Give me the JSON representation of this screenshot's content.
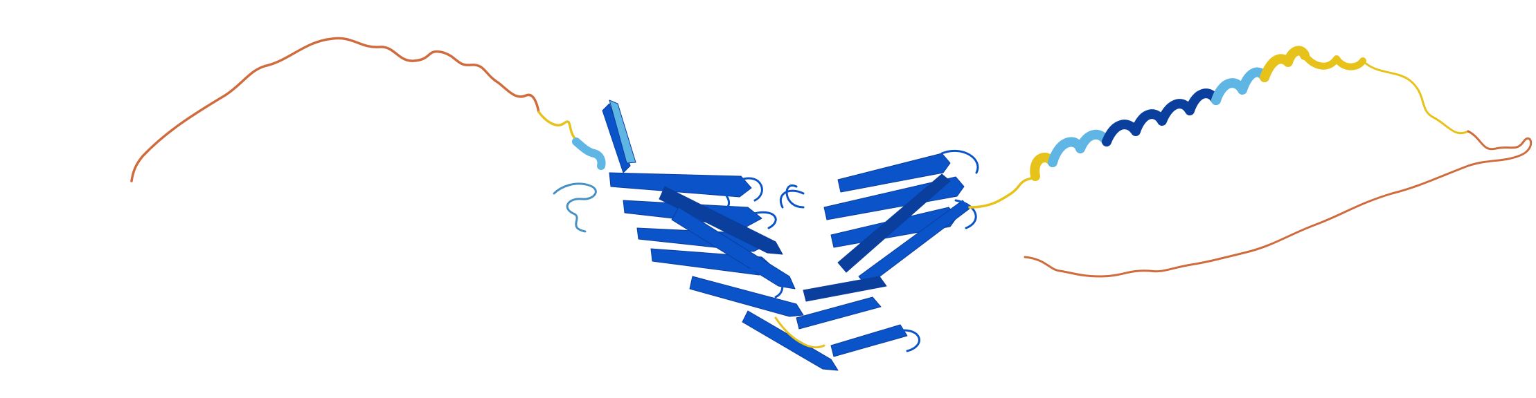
{
  "image": {
    "subject": "protein-structure-cartoon",
    "background_color": "#ffffff",
    "confidence_colors": {
      "very_high": "#0a53c9",
      "very_high_dark": "#0b3f9e",
      "confident": "#5fb6e4",
      "confident_mid": "#4690c4",
      "low": "#e7c21a",
      "very_low": "#cf6b3c"
    }
  }
}
